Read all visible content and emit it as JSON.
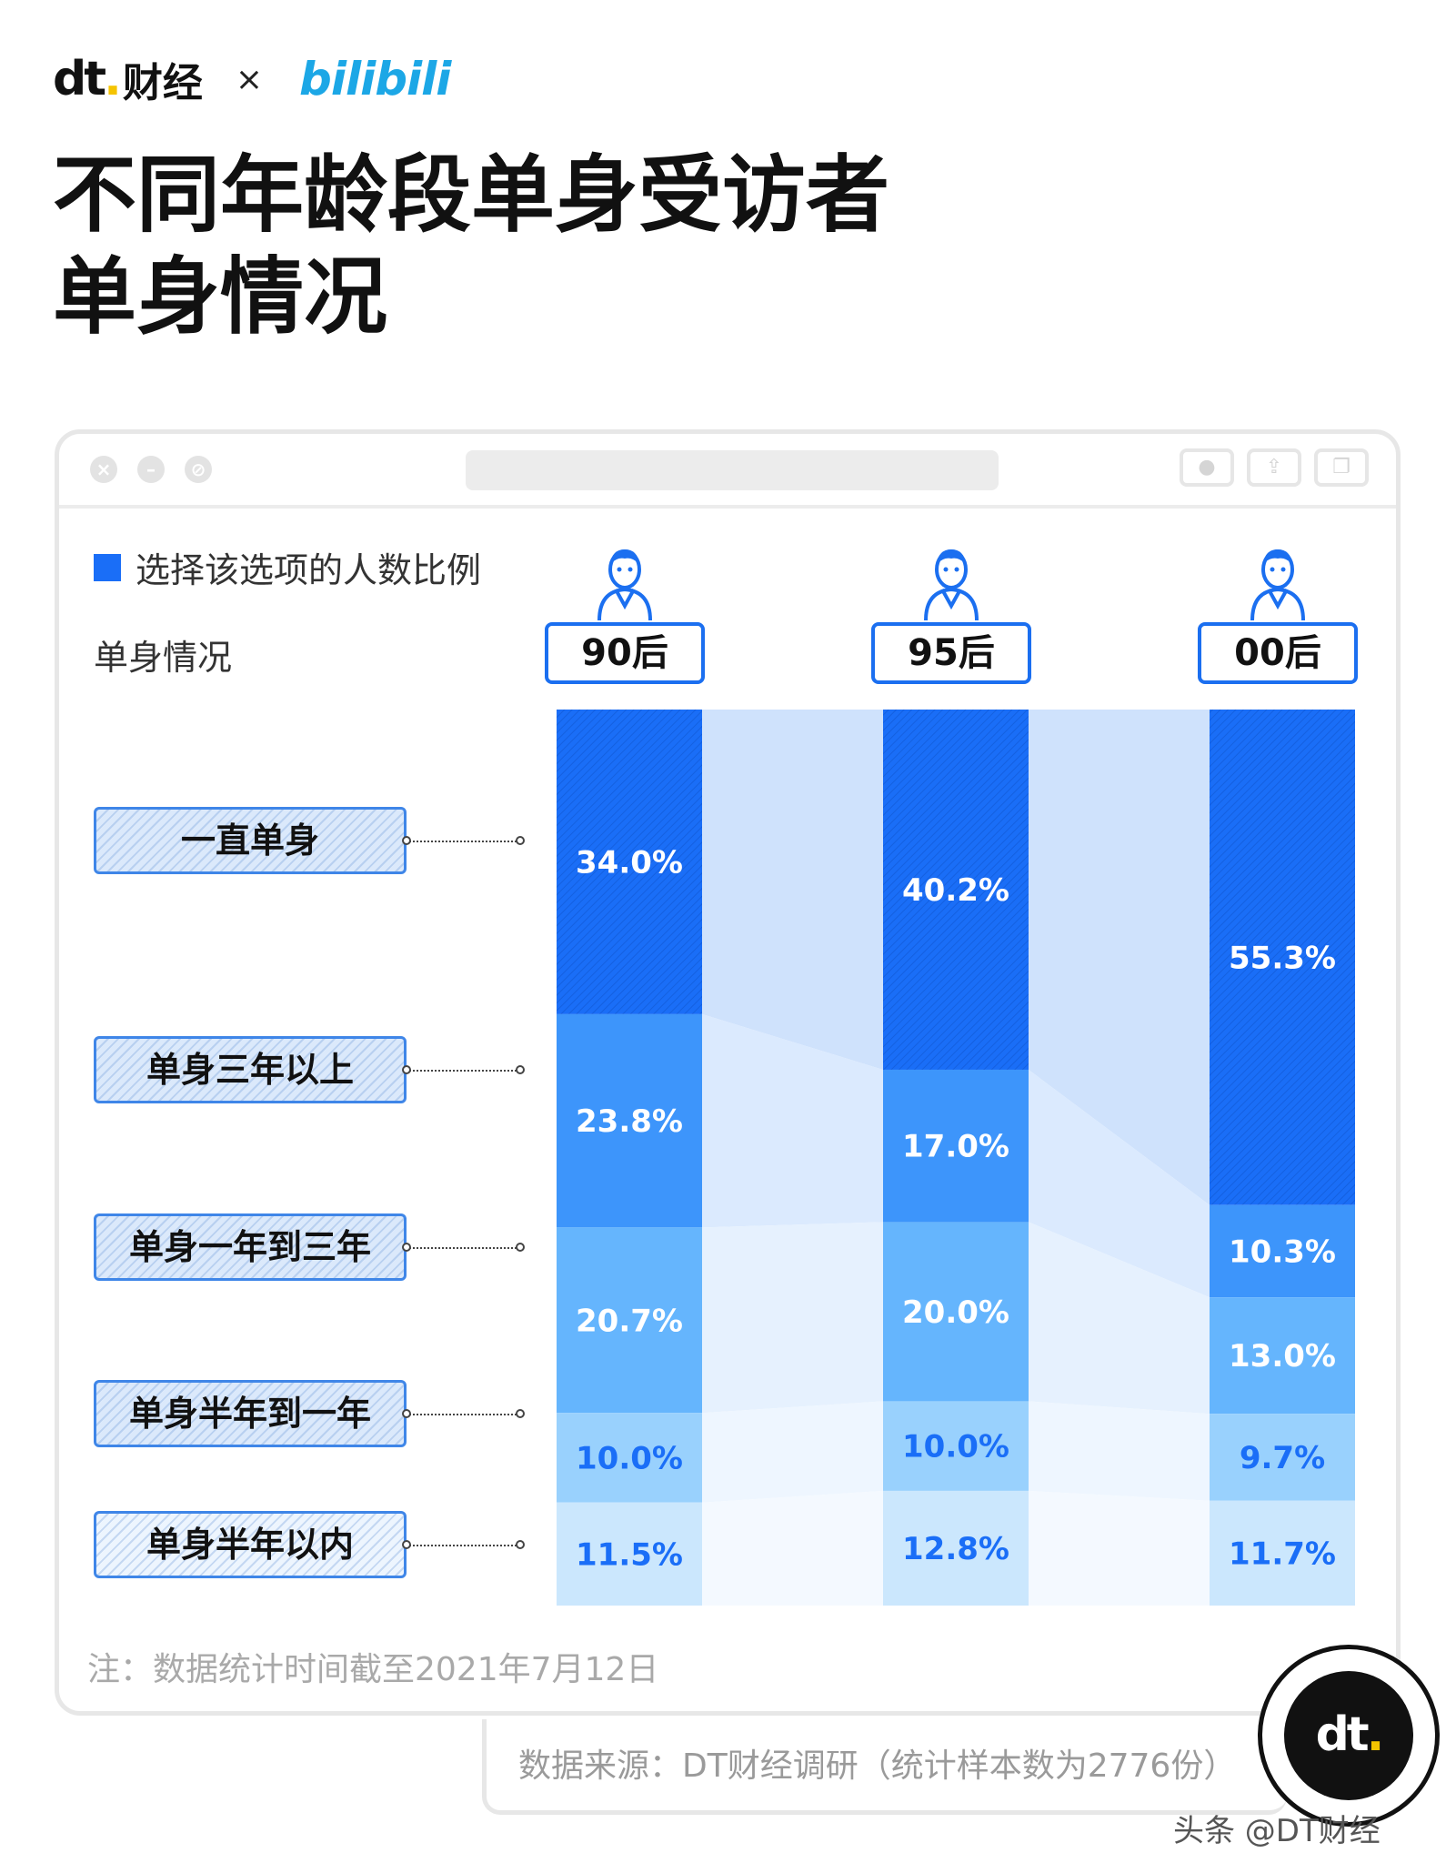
{
  "header": {
    "dt_logo": "dt",
    "dt_name": "财经",
    "times": "×",
    "partner": "bilibili"
  },
  "title": {
    "line1": "不同年龄段单身受访者",
    "line2": "单身情况"
  },
  "legend": {
    "label": "选择该选项的人数比例",
    "color": "#1a6ef7"
  },
  "row_header": "单身情况",
  "chart_data": {
    "type": "bar",
    "stacked": true,
    "title": "不同年龄段单身受访者单身情况",
    "categories": [
      "90后",
      "95后",
      "00后"
    ],
    "series": [
      {
        "name": "一直单身",
        "values": [
          34.0,
          40.2,
          55.3
        ],
        "color": "#1a6ef7"
      },
      {
        "name": "单身三年以上",
        "values": [
          23.8,
          17.0,
          10.3
        ],
        "color": "#3d95fb"
      },
      {
        "name": "单身一年到三年",
        "values": [
          20.7,
          20.0,
          13.0
        ],
        "color": "#65b5fd"
      },
      {
        "name": "单身半年到一年",
        "values": [
          10.0,
          10.0,
          9.7
        ],
        "color": "#99d1fd"
      },
      {
        "name": "单身半年以内",
        "values": [
          11.5,
          12.8,
          11.7
        ],
        "color": "#cbe7fd"
      }
    ],
    "unit": "%",
    "ylim": [
      0,
      100
    ],
    "grid": false,
    "legend_position": "top-left"
  },
  "note": "注：数据统计时间截至2021年7月12日",
  "source": "数据来源：DT财经调研（统计样本数为2776份）",
  "badge": "dt",
  "watermark_footer": "头条 @DT财经"
}
